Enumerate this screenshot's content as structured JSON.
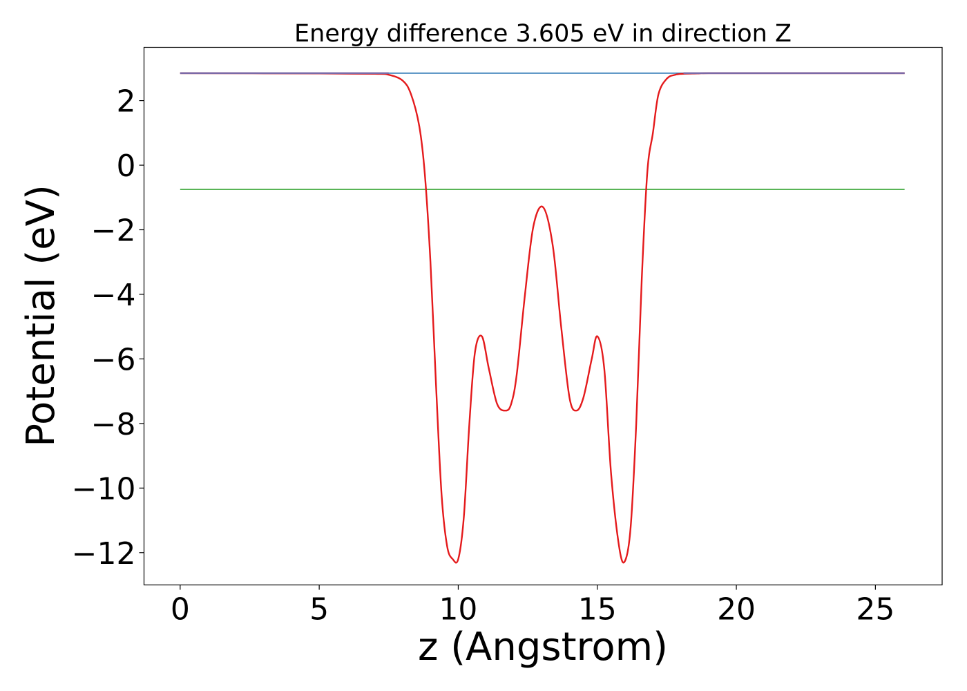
{
  "chart_data": {
    "type": "line",
    "title": "Energy difference 3.605 eV in direction Z",
    "xlabel": "z (Angstrom)",
    "ylabel": "Potential (eV)",
    "xlim": [
      -1.3,
      27.4
    ],
    "ylim": [
      -13.0,
      3.65
    ],
    "x_ticks": [
      0,
      5,
      10,
      15,
      20,
      25
    ],
    "x_tick_labels": [
      "0",
      "5",
      "10",
      "15",
      "20",
      "25"
    ],
    "y_ticks": [
      2,
      0,
      -2,
      -4,
      -6,
      -8,
      -10,
      -12
    ],
    "y_tick_labels": [
      "2",
      "0",
      "−2",
      "−4",
      "−6",
      "−8",
      "−10",
      "−12"
    ],
    "grid": false,
    "legend": false,
    "series": [
      {
        "color": "#e41a1c",
        "x": [
          0,
          5,
          7,
          7.5,
          8,
          8.3,
          8.6,
          8.8,
          9.0,
          9.2,
          9.4,
          9.6,
          9.8,
          10.0,
          10.2,
          10.4,
          10.6,
          10.85,
          11.1,
          11.4,
          11.7,
          11.9,
          12.1,
          12.4,
          12.7,
          13.05,
          13.4,
          13.7,
          14.0,
          14.25,
          14.5,
          14.8,
          15.0,
          15.25,
          15.5,
          15.8,
          16.0,
          16.2,
          16.4,
          16.6,
          16.8,
          17.0,
          17.2,
          17.5,
          17.8,
          18.1,
          18.6,
          19.0,
          21.0,
          26.05
        ],
        "y": [
          2.85,
          2.84,
          2.83,
          2.8,
          2.62,
          2.2,
          1.2,
          -0.3,
          -3.0,
          -6.8,
          -10.2,
          -11.8,
          -12.2,
          -12.2,
          -10.9,
          -8.0,
          -5.8,
          -5.3,
          -6.3,
          -7.4,
          -7.6,
          -7.4,
          -6.5,
          -4.0,
          -1.9,
          -1.3,
          -2.5,
          -5.0,
          -7.2,
          -7.6,
          -7.2,
          -6.0,
          -5.3,
          -6.3,
          -9.6,
          -11.9,
          -12.25,
          -11.2,
          -8.0,
          -3.5,
          -0.2,
          1.0,
          2.2,
          2.68,
          2.8,
          2.83,
          2.84,
          2.85,
          2.85,
          2.85
        ]
      },
      {
        "color": "#377eb8",
        "x": [
          0,
          26.05
        ],
        "y": [
          2.85,
          2.85
        ]
      },
      {
        "color": "#4daf4a",
        "x": [
          0,
          26.05
        ],
        "y": [
          -0.75,
          -0.75
        ]
      }
    ]
  }
}
